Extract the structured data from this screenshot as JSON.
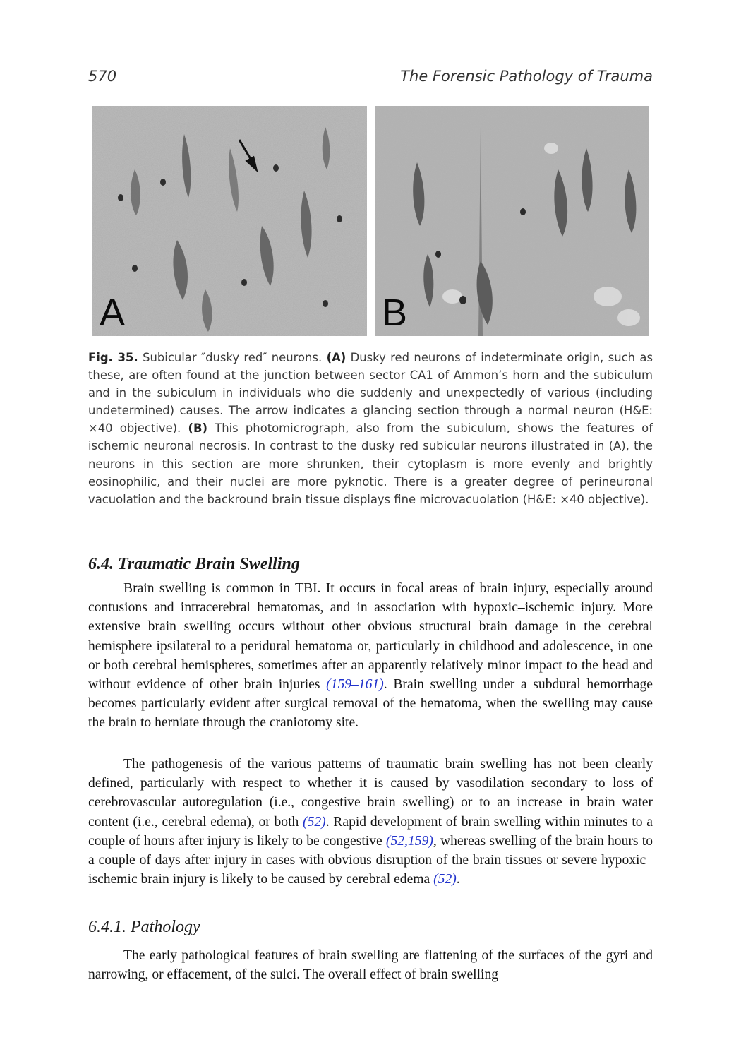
{
  "header": {
    "page_number": "570",
    "running_title": "The Forensic Pathology of Trauma"
  },
  "figure": {
    "panel_a_label": "A",
    "panel_b_label": "B",
    "caption": {
      "fig_label": "Fig. 35.",
      "title": " Subicular ″dusky red″ neurons. ",
      "a_label": "(A)",
      "a_text": " Dusky red neurons of indeterminate origin, such as these, are often found at the junction between sector CA1 of Ammon’s horn and the subiculum and in the subiculum in individuals who die suddenly and unexpectedly of various (including undetermined) causes. The arrow indicates a glancing section through a normal neuron (H&E: ×40 objective). ",
      "b_label": "(B)",
      "b_text": " This photomicrograph, also from the subiculum, shows the features of ischemic neuronal necrosis. In contrast to the dusky red subicular neurons illustrated in (A), the neurons in this section are more shrunken, their cytoplasm is more evenly and brightly eosinophilic, and their nuclei are more pyknotic. There is a greater degree of perineuronal vacuolation and the backround brain tissue displays fine microvacuolation (H&E: ×40 objective)."
    }
  },
  "section": {
    "heading": "6.4. Traumatic Brain Swelling",
    "para1": {
      "t1": "Brain swelling is common in TBI. It occurs in focal areas of brain injury, especially around contusions and intracerebral hematomas, and in association with hypoxic–ischemic injury. More extensive brain swelling occurs without other obvious structural brain damage in the cerebral hemisphere ipsilateral to a peridural hematoma or, particularly in childhood and adolescence, in one or both cerebral hemispheres, sometimes after an apparently relatively minor impact to the head and without evidence of other brain injuries ",
      "ref1": "(159–161)",
      "t2": ". Brain swelling under a subdural hemorrhage becomes particularly evident after surgical removal of the hematoma, when the swelling may cause the brain to herniate through the craniotomy site."
    },
    "para2": {
      "t1": "The pathogenesis of the various patterns of traumatic brain swelling has not been clearly defined, particularly with respect to whether it is caused by vasodilation secondary to loss of cerebrovascular autoregulation (i.e., congestive brain swelling) or to an increase in brain water content (i.e., cerebral edema), or both ",
      "ref1": "(52)",
      "t2": ". Rapid development of brain swelling within minutes to a couple of hours after injury is likely to be congestive ",
      "ref2": "(52,159)",
      "t3": ", whereas swelling of the brain hours to a couple of days after injury in cases with obvious disruption of the brain tissues or severe hypoxic–ischemic brain injury is likely to be caused by cerebral edema ",
      "ref3": "(52)",
      "t4": "."
    }
  },
  "subsection": {
    "heading": "6.4.1. Pathology",
    "para1": "The early pathological features of brain swelling are flattening of the surfaces of the gyri and narrowing, or effacement, of the sulci. The overall effect of brain swelling"
  }
}
